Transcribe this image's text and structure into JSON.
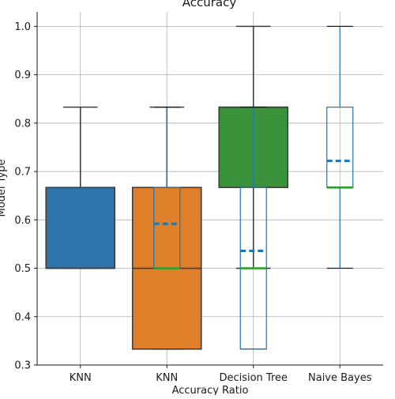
{
  "chart_data": {
    "type": "box",
    "title": "Accuracy",
    "xlabel": "Accuracy Ratio",
    "ylabel": "Model Type",
    "ylim": [
      0.3,
      1.03
    ],
    "yticks": [
      "0.3",
      "0.4",
      "0.5",
      "0.6",
      "0.7",
      "0.8",
      "0.9",
      "1.0"
    ],
    "categories": [
      "KNN",
      "KNN",
      "Decision Tree",
      "Naive Bayes"
    ],
    "grid": true,
    "filled_boxes": [
      {
        "category_index": 0,
        "whisker_low": 0.5,
        "q1": 0.5,
        "median": 0.5,
        "q3": 0.667,
        "whisker_high": 0.833,
        "color": "#2f73ad"
      },
      {
        "category_index": 1,
        "whisker_low": 0.333,
        "q1": 0.333,
        "median": 0.5,
        "q3": 0.667,
        "whisker_high": 0.833,
        "color": "#e07f2a"
      },
      {
        "category_index": 2,
        "whisker_low": 0.5,
        "q1": 0.667,
        "median": 0.833,
        "q3": 0.833,
        "whisker_high": 1.0,
        "color": "#3a923a"
      }
    ],
    "outline_boxes": [
      {
        "category_index": 1,
        "whisker_low": 0.5,
        "q1": 0.5,
        "median": 0.5,
        "mean": 0.592,
        "q3": 0.667,
        "whisker_high": 0.833,
        "color": "#1f77b4",
        "median_color": "#2ca02c"
      },
      {
        "category_index": 2,
        "whisker_low": 0.333,
        "q1": 0.333,
        "median": 0.5,
        "mean": 0.536,
        "q3": 0.667,
        "whisker_high": 0.833,
        "color": "#1f77b4",
        "median_color": "#2ca02c"
      },
      {
        "category_index": 3,
        "whisker_low": 0.5,
        "q1": 0.667,
        "median": 0.667,
        "mean": 0.722,
        "q3": 0.833,
        "whisker_high": 1.0,
        "color": "#1f77b4",
        "median_color": "#2ca02c"
      }
    ]
  }
}
